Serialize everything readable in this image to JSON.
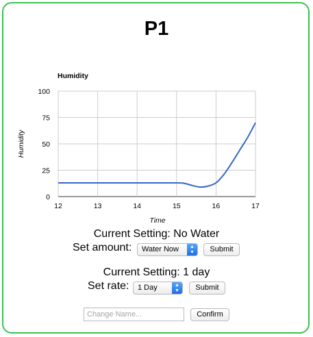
{
  "page": {
    "title": "P1"
  },
  "chart_data": {
    "type": "line",
    "title": "Humidity",
    "xlabel": "Time",
    "ylabel": "Humidity",
    "xlim": [
      12,
      17
    ],
    "ylim": [
      0,
      100
    ],
    "x_ticks": [
      "12",
      "13",
      "14",
      "15",
      "16",
      "17"
    ],
    "y_ticks": [
      "0",
      "25",
      "50",
      "75",
      "100"
    ],
    "grid": true,
    "series": [
      {
        "color": "#3366cc",
        "x": [
          12,
          13,
          14,
          15,
          15.2,
          15.4,
          15.6,
          15.8,
          16,
          16.2,
          16.4,
          16.6,
          16.8,
          17
        ],
        "y": [
          13,
          13,
          13,
          13,
          12.5,
          10.5,
          9,
          10,
          13,
          21,
          32,
          44,
          56,
          70
        ]
      }
    ]
  },
  "water": {
    "current_setting": "Current Setting: No Water",
    "set_label": "Set amount:",
    "selected": "Water Now",
    "submit_label": "Submit"
  },
  "rate": {
    "current_setting": "Current Setting: 1 day",
    "set_label": "Set rate:",
    "selected": "1 Day",
    "submit_label": "Submit"
  },
  "rename": {
    "placeholder": "Change Name...",
    "confirm_label": "Confirm"
  }
}
